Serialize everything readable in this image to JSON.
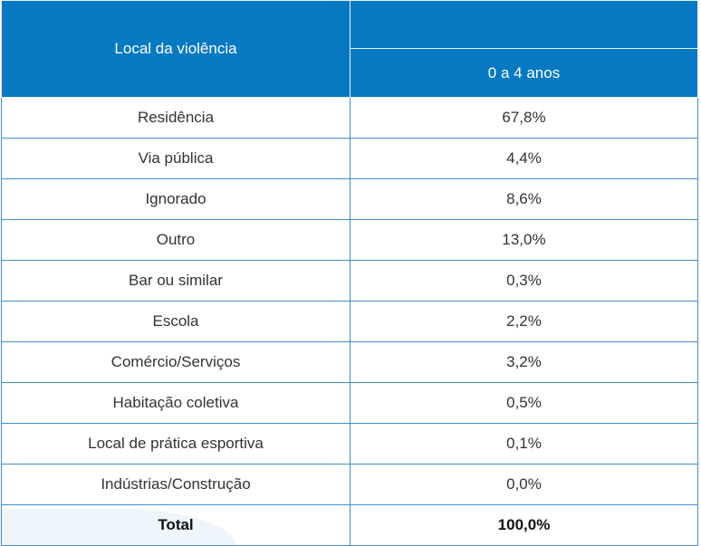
{
  "table": {
    "header": {
      "column_label": "Local da violência",
      "group_label": "",
      "age_group": "0 a 4 anos"
    },
    "rows": [
      {
        "local": "Residência",
        "value": "67,8%"
      },
      {
        "local": "Via pública",
        "value": "4,4%"
      },
      {
        "local": "Ignorado",
        "value": "8,6%"
      },
      {
        "local": "Outro",
        "value": "13,0%"
      },
      {
        "local": "Bar ou similar",
        "value": "0,3%"
      },
      {
        "local": "Escola",
        "value": "2,2%"
      },
      {
        "local": "Comércio/Serviços",
        "value": "3,2%"
      },
      {
        "local": "Habitação coletiva",
        "value": "0,5%"
      },
      {
        "local": "Local de prática esportiva",
        "value": "0,1%"
      },
      {
        "local": "Indústrias/Construção",
        "value": "0,0%"
      }
    ],
    "total": {
      "label": "Total",
      "value": "100,0%"
    }
  },
  "colors": {
    "header": "#0679c2",
    "border": "#3f8fcc"
  }
}
